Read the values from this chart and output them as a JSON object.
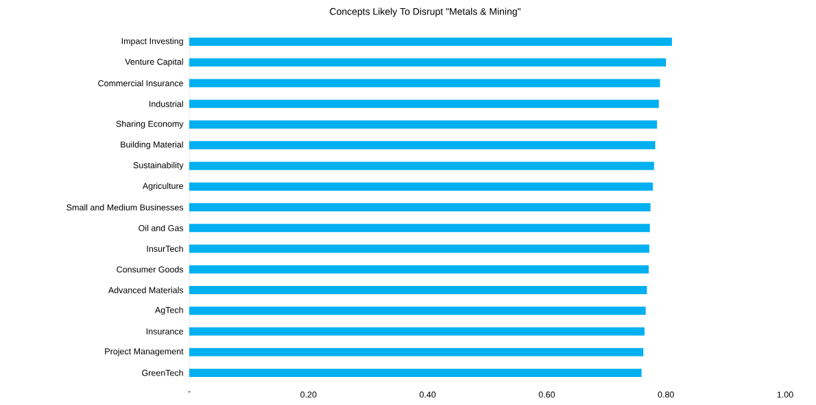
{
  "chart_data": {
    "type": "bar",
    "orientation": "horizontal",
    "title": "Concepts Likely To Disrupt \"Metals & Mining\"",
    "categories": [
      "Impact Investing",
      "Venture Capital",
      "Commercial Insurance",
      "Industrial",
      "Sharing Economy",
      "Building Material",
      "Sustainability",
      "Agriculture",
      "Small and Medium Businesses",
      "Oil and Gas",
      "InsurTech",
      "Consumer Goods",
      "Advanced Materials",
      "AgTech",
      "Insurance",
      "Project Management",
      "GreenTech"
    ],
    "values": [
      0.81,
      0.8,
      0.79,
      0.788,
      0.785,
      0.782,
      0.78,
      0.778,
      0.774,
      0.773,
      0.772,
      0.771,
      0.768,
      0.766,
      0.764,
      0.762,
      0.759
    ],
    "color": "#00b0f0",
    "xlim": [
      0,
      1
    ],
    "xticks": [
      {
        "value": 0,
        "label": "-"
      },
      {
        "value": 0.2,
        "label": "0.20"
      },
      {
        "value": 0.4,
        "label": "0.40"
      },
      {
        "value": 0.6,
        "label": "0.60"
      },
      {
        "value": 0.8,
        "label": "0.80"
      },
      {
        "value": 1.0,
        "label": "1.00"
      }
    ]
  }
}
